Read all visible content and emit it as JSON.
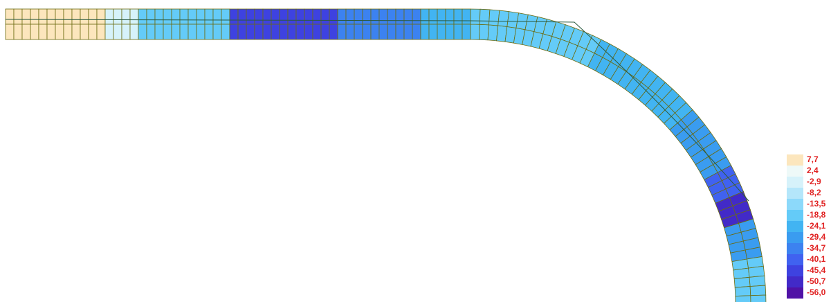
{
  "legend": {
    "entries": [
      {
        "label": "7,7",
        "color": "#fce6bd"
      },
      {
        "label": "2,4",
        "color": "#eef9f8"
      },
      {
        "label": "-2,9",
        "color": "#d6f2fa"
      },
      {
        "label": "-8,2",
        "color": "#b4e6fa"
      },
      {
        "label": "-13,5",
        "color": "#8cd9fa"
      },
      {
        "label": "-18,8",
        "color": "#64cbf8"
      },
      {
        "label": "-24,1",
        "color": "#42b4f2"
      },
      {
        "label": "-29,4",
        "color": "#3a9cf0"
      },
      {
        "label": "-34,7",
        "color": "#3c82f0"
      },
      {
        "label": "-40,1",
        "color": "#4062f0"
      },
      {
        "label": "-45,4",
        "color": "#3e42e0"
      },
      {
        "label": "-50,7",
        "color": "#422ac8"
      },
      {
        "label": "-56,0",
        "color": "#5012a6"
      }
    ]
  }
}
